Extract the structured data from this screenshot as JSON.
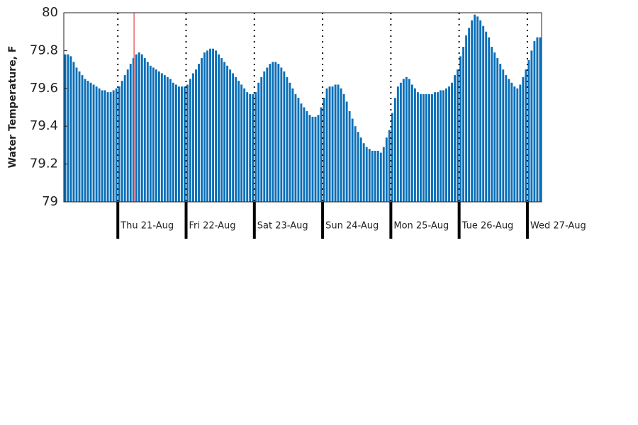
{
  "chart_data": {
    "type": "bar",
    "y_label": "Water Temperature, F",
    "color": "#0a6fb8",
    "marker_x": 24.7,
    "marker_color": "#e8434a",
    "xlim": [
      0,
      168
    ],
    "xticks": [
      {
        "value": 19,
        "label": "Thu 21-Aug"
      },
      {
        "value": 43,
        "label": "Fri 22-Aug"
      },
      {
        "value": 67,
        "label": "Sat 23-Aug"
      },
      {
        "value": 91,
        "label": "Sun 24-Aug"
      },
      {
        "value": 115,
        "label": "Mon 25-Aug"
      },
      {
        "value": 139,
        "label": "Tue 26-Aug"
      },
      {
        "value": 163,
        "label": "Wed 27-Aug"
      }
    ],
    "ylim": [
      79,
      80
    ],
    "yticks": [
      79,
      79.2,
      79.4,
      79.6,
      79.8,
      80
    ],
    "values": [
      79.78,
      79.78,
      79.77,
      79.74,
      79.71,
      79.69,
      79.67,
      79.65,
      79.64,
      79.63,
      79.62,
      79.61,
      79.6,
      79.59,
      79.59,
      79.58,
      79.58,
      79.59,
      79.6,
      79.61,
      79.64,
      79.67,
      79.7,
      79.73,
      79.76,
      79.78,
      79.79,
      79.78,
      79.76,
      79.74,
      79.72,
      79.71,
      79.7,
      79.69,
      79.68,
      79.67,
      79.66,
      79.65,
      79.63,
      79.62,
      79.61,
      79.61,
      79.61,
      79.62,
      79.65,
      79.68,
      79.7,
      79.73,
      79.76,
      79.79,
      79.8,
      79.81,
      79.81,
      79.8,
      79.78,
      79.76,
      79.74,
      79.72,
      79.7,
      79.68,
      79.66,
      79.64,
      79.62,
      79.6,
      79.58,
      79.57,
      79.57,
      79.58,
      79.63,
      79.66,
      79.69,
      79.71,
      79.73,
      79.74,
      79.74,
      79.73,
      79.71,
      79.69,
      79.66,
      79.63,
      79.6,
      79.57,
      79.55,
      79.52,
      79.5,
      79.48,
      79.46,
      79.45,
      79.45,
      79.46,
      79.5,
      79.55,
      79.6,
      79.61,
      79.61,
      79.62,
      79.62,
      79.6,
      79.57,
      79.53,
      79.48,
      79.44,
      79.4,
      79.37,
      79.34,
      79.31,
      79.29,
      79.28,
      79.27,
      79.27,
      79.27,
      79.26,
      79.29,
      79.34,
      79.38,
      79.47,
      79.55,
      79.61,
      79.63,
      79.65,
      79.66,
      79.65,
      79.62,
      79.6,
      79.58,
      79.57,
      79.57,
      79.57,
      79.57,
      79.57,
      79.58,
      79.58,
      79.59,
      79.59,
      79.6,
      79.61,
      79.63,
      79.67,
      79.7,
      79.77,
      79.82,
      79.88,
      79.92,
      79.96,
      79.99,
      79.98,
      79.96,
      79.93,
      79.9,
      79.87,
      79.82,
      79.79,
      79.76,
      79.73,
      79.7,
      79.67,
      79.65,
      79.63,
      79.61,
      79.6,
      79.62,
      79.66,
      79.7,
      79.75,
      79.8,
      79.85,
      79.87,
      79.87
    ]
  }
}
